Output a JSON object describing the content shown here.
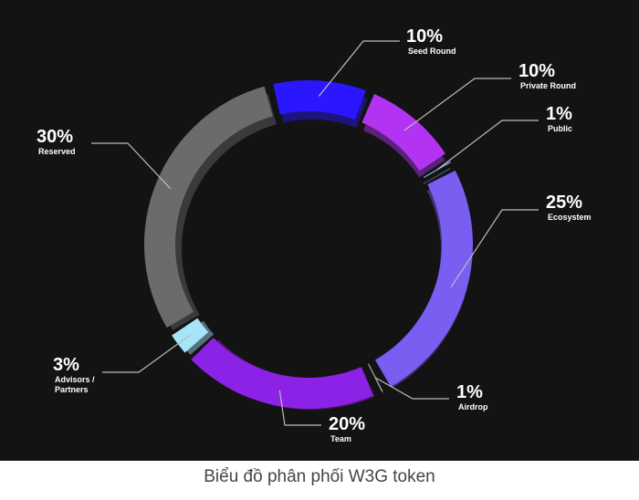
{
  "chart_data": {
    "type": "donut",
    "title": "Biểu đồ phân phối W3G token",
    "categories": [
      "Seed Round",
      "Private Round",
      "Public",
      "Ecosystem",
      "Airdrop",
      "Team",
      "Advisors / Partners",
      "Reserved"
    ],
    "values": [
      10,
      10,
      1,
      25,
      1,
      20,
      3,
      30
    ],
    "value_labels": [
      "10%",
      "10%",
      "1%",
      "25%",
      "1%",
      "20%",
      "3%",
      "30%"
    ],
    "colors": [
      "#2b17ff",
      "#b234f2",
      "#6fbff0",
      "#7a5ef2",
      "#a6a6a6",
      "#8c22e6",
      "#a6e4fa",
      "#6b6b6b"
    ]
  }
}
